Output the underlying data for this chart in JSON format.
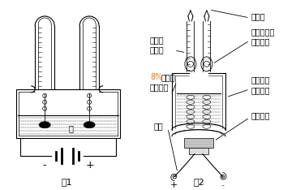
{
  "title1": "图1",
  "title2": "图2",
  "label_water": "水",
  "label_minus": "-",
  "label_plus": "+",
  "label_pipette": "改进的\n移液管",
  "label_naoh": "8%的氢氧\n化钠溶液",
  "label_naoh_8": "8%",
  "label_naoh_rest": "的氢氧\n化钠溶液",
  "label_wire": "导线",
  "label_tip": "尖嘴管",
  "label_rubber": "含玻璃小球\n的橡皮管",
  "label_bottle": "截取底部\n的塑料瓶",
  "label_needle": "注射针头",
  "background": "#ffffff",
  "lc": "#000000",
  "naoh_color": "#e87820",
  "gray_fill": "#cccccc",
  "dot_color": "#999999"
}
